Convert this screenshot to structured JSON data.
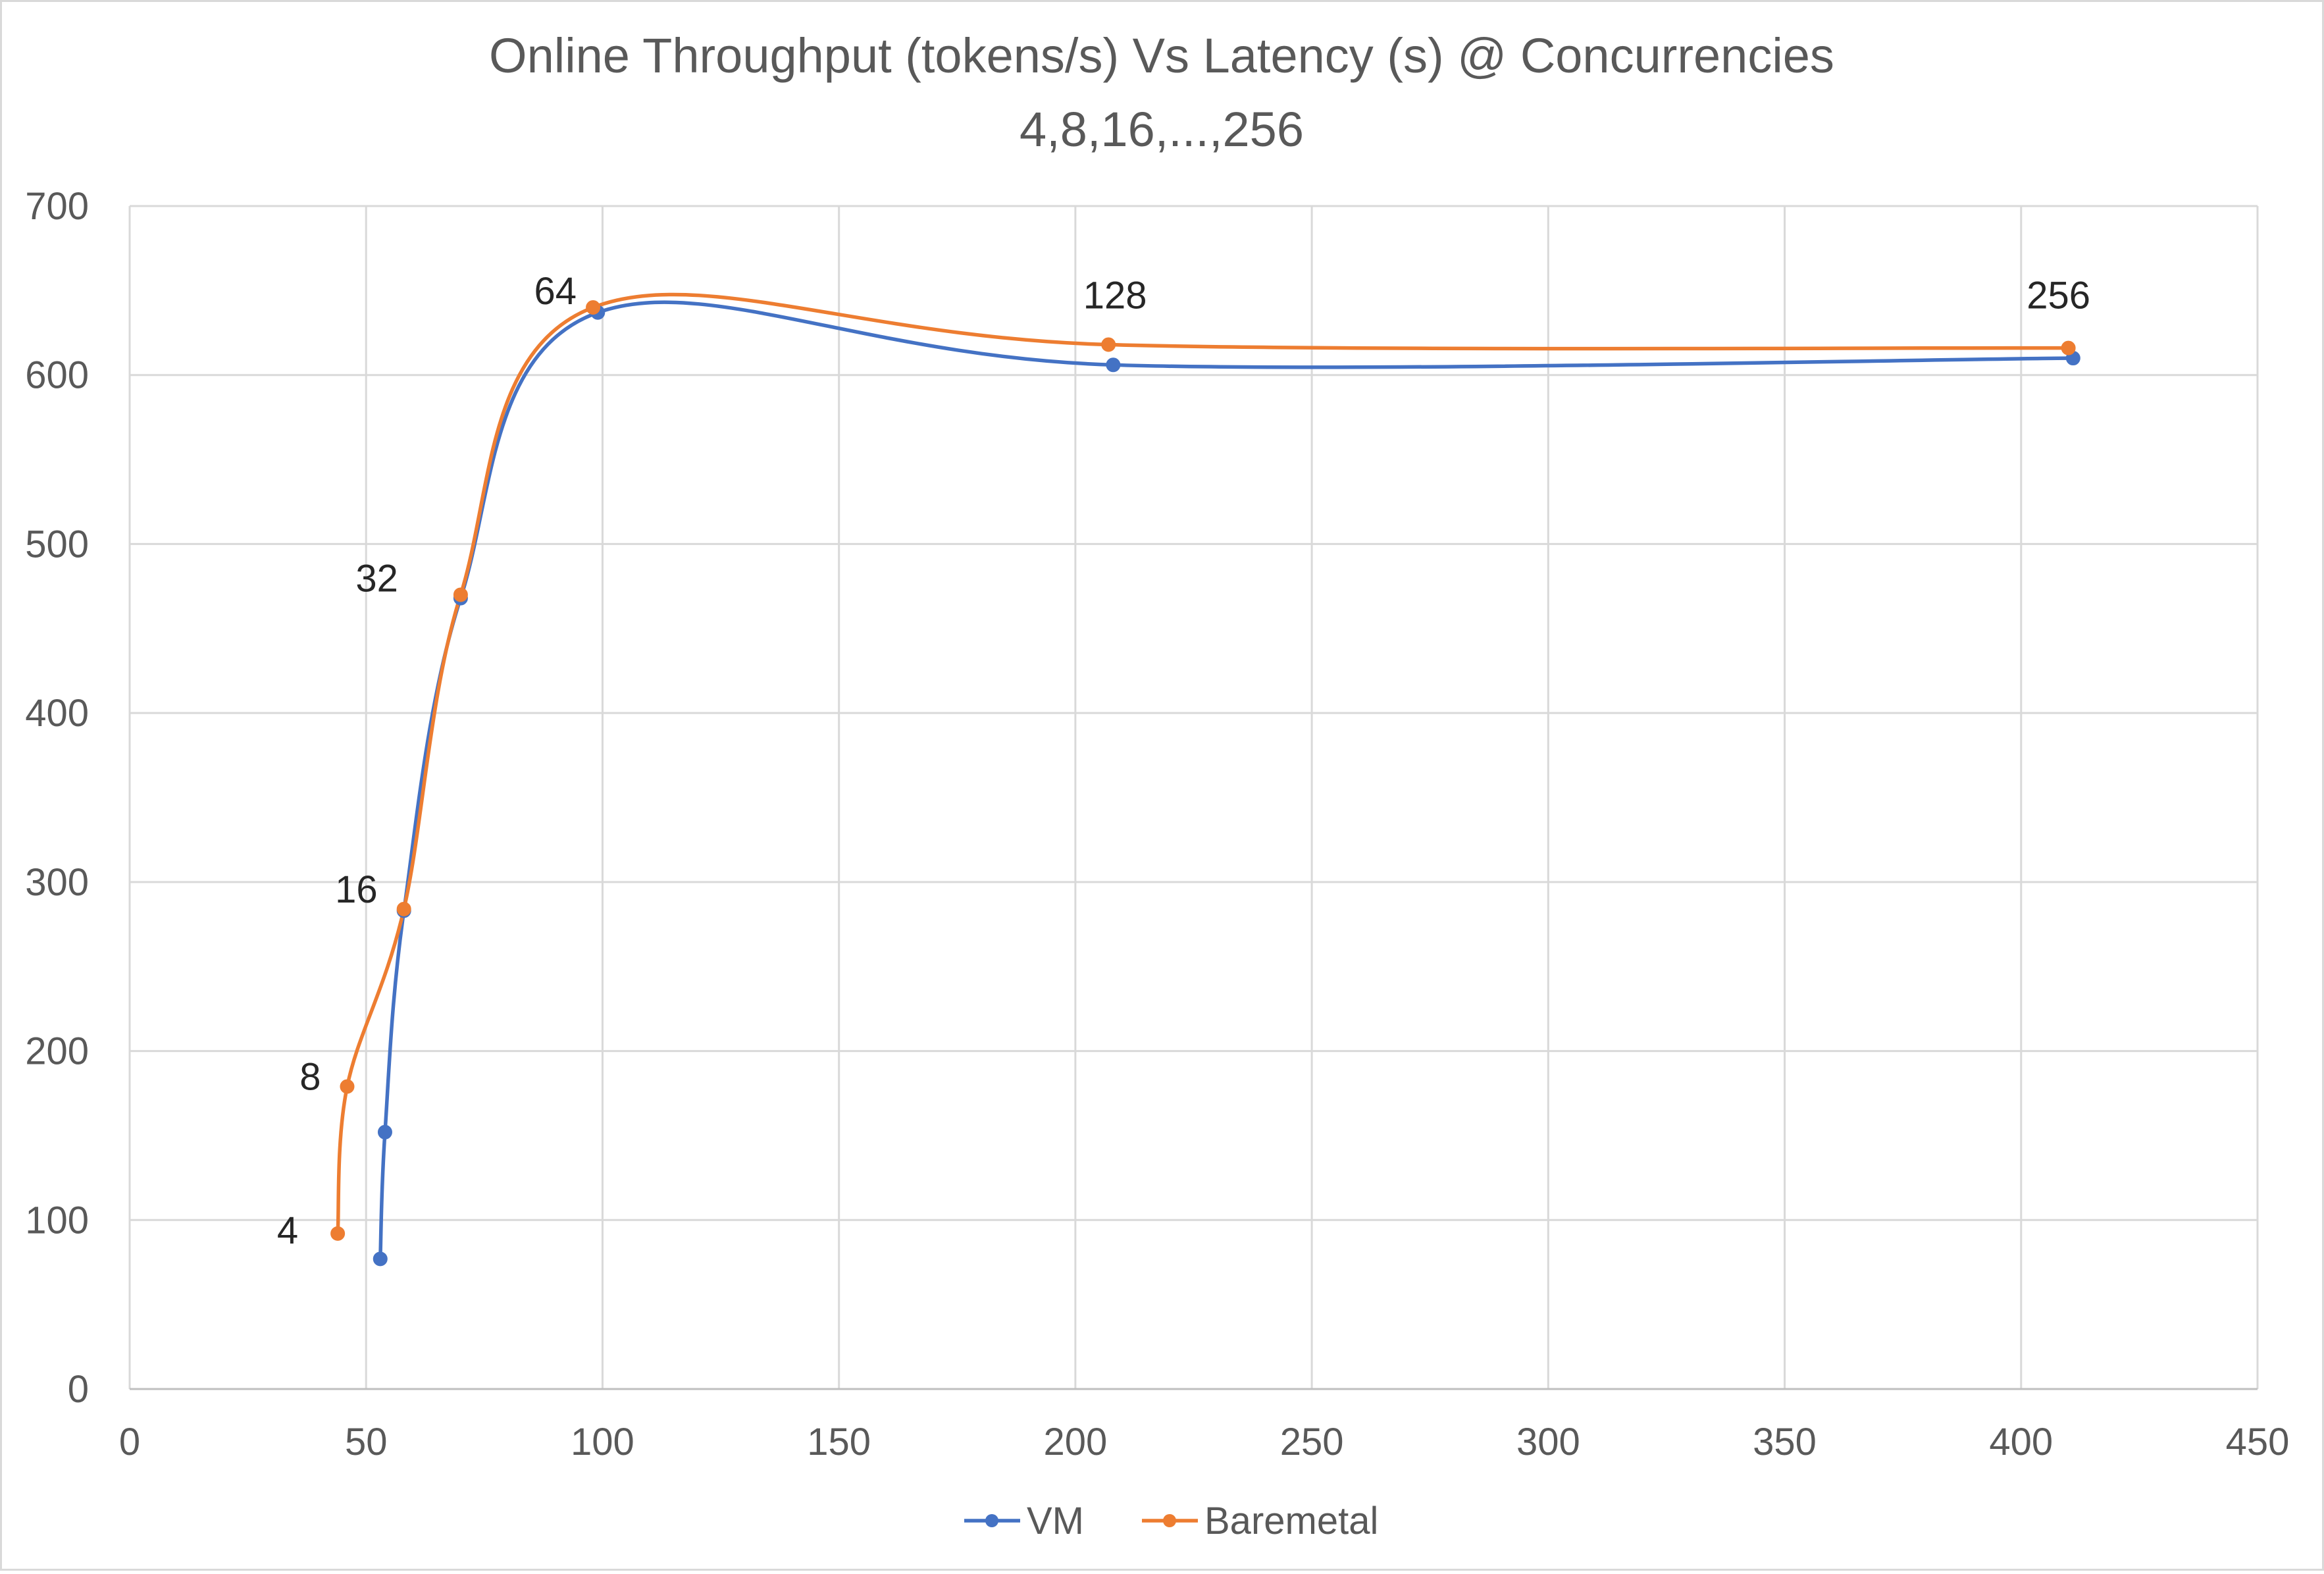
{
  "chart_data": {
    "type": "scatter",
    "title_line1": "Online Throughput (tokens/s) Vs Latency (s) @ Concurrencies",
    "title_line2": "4,8,16,...,256",
    "xlabel": "",
    "ylabel": "",
    "xlim": [
      0,
      450
    ],
    "ylim": [
      0,
      700
    ],
    "x_ticks": [
      0,
      50,
      100,
      150,
      200,
      250,
      300,
      350,
      400,
      450
    ],
    "y_ticks": [
      0,
      100,
      200,
      300,
      400,
      500,
      600,
      700
    ],
    "grid": true,
    "smooth_lines": true,
    "legend_position": "bottom",
    "series": [
      {
        "name": "VM",
        "color": "#4472C4",
        "x": [
          53,
          54,
          58,
          70,
          99,
          208,
          411
        ],
        "y": [
          77,
          152,
          283,
          468,
          637,
          606,
          610
        ]
      },
      {
        "name": "Baremetal",
        "color": "#ED7D31",
        "x": [
          44,
          46,
          58,
          70,
          98,
          207,
          410
        ],
        "y": [
          92,
          179,
          284,
          470,
          640,
          618,
          616
        ]
      }
    ],
    "annotations": [
      {
        "text": "4",
        "x": 44,
        "y": 92
      },
      {
        "text": "8",
        "x": 46,
        "y": 179
      },
      {
        "text": "16",
        "x": 58,
        "y": 284
      },
      {
        "text": "32",
        "x": 70,
        "y": 470
      },
      {
        "text": "64",
        "x": 98,
        "y": 640
      },
      {
        "text": "128",
        "x": 207,
        "y": 618
      },
      {
        "text": "256",
        "x": 410,
        "y": 616
      }
    ]
  }
}
